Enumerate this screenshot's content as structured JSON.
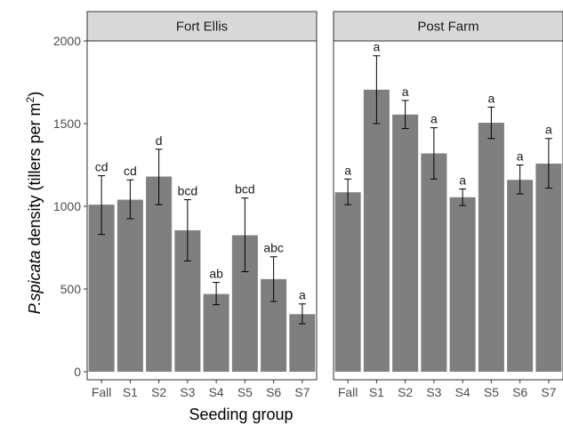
{
  "chart_data": {
    "type": "bar",
    "xlabel": "Seeding group",
    "ylabel": {
      "italic": "P.spicata",
      "rest": " density (tillers per m",
      "superscript": "2",
      "close": ")"
    },
    "ylim": [
      0,
      2000
    ],
    "yticks": [
      0,
      500,
      1000,
      1500,
      2000
    ],
    "grid": false,
    "categories": [
      "Fall",
      "S1",
      "S2",
      "S3",
      "S4",
      "S5",
      "S6",
      "S7"
    ],
    "colors": {
      "bar": "#7f7f7f",
      "strip": "#d9d9d9",
      "error": "#000000"
    },
    "panels": [
      {
        "title": "Fort Ellis",
        "values": [
          1010,
          1040,
          1180,
          855,
          470,
          825,
          560,
          348
        ],
        "err_low": [
          830,
          925,
          1010,
          670,
          405,
          605,
          425,
          290
        ],
        "err_high": [
          1185,
          1160,
          1345,
          1040,
          540,
          1050,
          695,
          410
        ],
        "labels": [
          "cd",
          "cd",
          "d",
          "bcd",
          "ab",
          "bcd",
          "abc",
          "a"
        ]
      },
      {
        "title": "Post Farm",
        "values": [
          1085,
          1705,
          1555,
          1320,
          1055,
          1505,
          1160,
          1258
        ],
        "err_low": [
          1010,
          1500,
          1470,
          1165,
          1005,
          1410,
          1075,
          1110
        ],
        "err_high": [
          1165,
          1910,
          1640,
          1475,
          1105,
          1600,
          1250,
          1410
        ],
        "labels": [
          "a",
          "a",
          "a",
          "a",
          "a",
          "a",
          "a",
          "a"
        ]
      }
    ]
  }
}
